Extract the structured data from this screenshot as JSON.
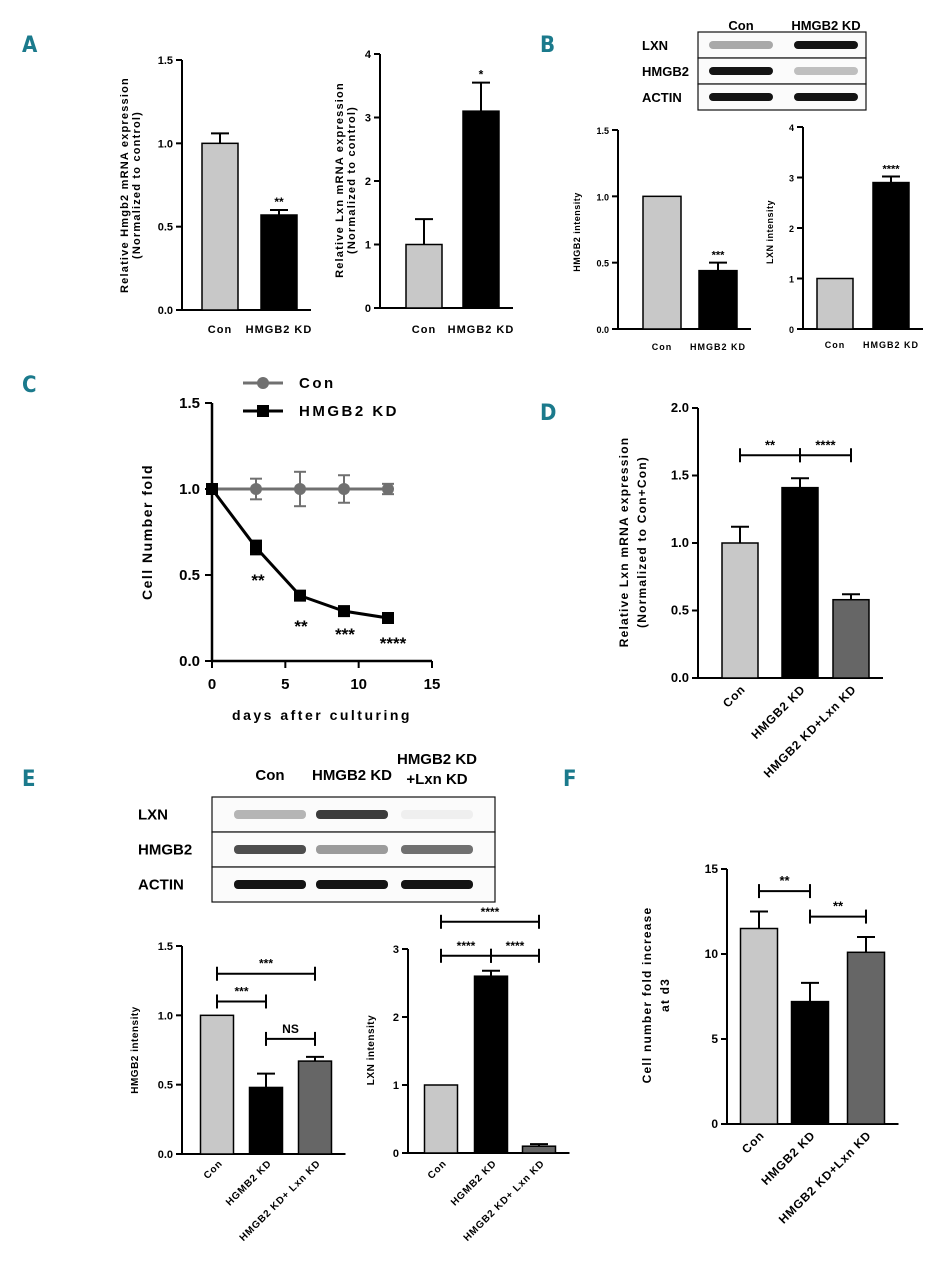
{
  "colors": {
    "panel_label": "#1b7a8c",
    "con_bar": "#c8c8c8",
    "kd_bar": "#000000",
    "kdlxn_bar": "#666666",
    "con_line": "#707070",
    "kd_line": "#000000"
  },
  "panel_labels": {
    "A": "A",
    "B": "B",
    "C": "C",
    "D": "D",
    "E": "E",
    "F": "F"
  },
  "chart_data": [
    {
      "id": "A1",
      "type": "bar",
      "categories": [
        "Con",
        "HMGB2 KD"
      ],
      "values": [
        1.0,
        0.57
      ],
      "errors": [
        0.06,
        0.03
      ],
      "sig": [
        "",
        "**"
      ],
      "ylabel": [
        "Relative Hmgb2 mRNA expression",
        "(Normalized to control)"
      ],
      "yticks": [
        "0.0",
        "0.5",
        "1.0",
        "1.5"
      ],
      "ylim": [
        0,
        1.5
      ]
    },
    {
      "id": "A2",
      "type": "bar",
      "categories": [
        "Con",
        "HMGB2 KD"
      ],
      "values": [
        1.0,
        3.1
      ],
      "errors": [
        0.4,
        0.45
      ],
      "sig": [
        "",
        "*"
      ],
      "ylabel": [
        "Relative Lxn mRNA expression",
        "(Normalized to control)"
      ],
      "yticks": [
        "0",
        "1",
        "2",
        "3",
        "4"
      ],
      "ylim": [
        0,
        4
      ]
    },
    {
      "id": "B1",
      "type": "bar",
      "categories": [
        "Con",
        "HMGB2 KD"
      ],
      "values": [
        1.0,
        0.44
      ],
      "errors": [
        0,
        0.06
      ],
      "sig": [
        "",
        "***"
      ],
      "ylabel": [
        "HMGB2 intensity"
      ],
      "yticks": [
        "0.0",
        "0.5",
        "1.0",
        "1.5"
      ],
      "ylim": [
        0,
        1.5
      ]
    },
    {
      "id": "B2",
      "type": "bar",
      "categories": [
        "Con",
        "HMGB2 KD"
      ],
      "values": [
        1.0,
        2.9
      ],
      "errors": [
        0,
        0.12
      ],
      "sig": [
        "",
        "****"
      ],
      "ylabel": [
        "LXN intensity"
      ],
      "yticks": [
        "0",
        "1",
        "2",
        "3",
        "4"
      ],
      "ylim": [
        0,
        4
      ]
    },
    {
      "id": "C",
      "type": "line",
      "xlabel": "days after culturing",
      "ylabel": "Cell Number fold",
      "xticks": [
        "0",
        "5",
        "10",
        "15"
      ],
      "xlim": [
        0,
        15
      ],
      "yticks": [
        "0.0",
        "0.5",
        "1.0",
        "1.5"
      ],
      "ylim": [
        0,
        1.5
      ],
      "series": [
        {
          "name": "Con",
          "x": [
            0,
            3,
            6,
            9,
            12
          ],
          "y": [
            1.0,
            1.0,
            1.0,
            1.0,
            1.0
          ],
          "err": [
            0,
            0.06,
            0.1,
            0.08,
            0.03
          ]
        },
        {
          "name": "HMGB2 KD",
          "x": [
            0,
            3,
            6,
            9,
            12
          ],
          "y": [
            1.0,
            0.66,
            0.38,
            0.29,
            0.25
          ],
          "err": [
            0,
            0.04,
            0.015,
            0.015,
            0.015
          ]
        }
      ],
      "sig": [
        "",
        "**",
        "**",
        "***",
        "****"
      ]
    },
    {
      "id": "D",
      "type": "bar",
      "categories": [
        "Con",
        "HMGB2 KD",
        "HMGB2 KD+Lxn KD"
      ],
      "values": [
        1.0,
        1.41,
        0.58
      ],
      "errors": [
        0.12,
        0.07,
        0.04
      ],
      "ylabel": [
        "Relative Lxn mRNA expression",
        "(Normalized to Con+Con)"
      ],
      "yticks": [
        "0.0",
        "0.5",
        "1.0",
        "1.5",
        "2.0"
      ],
      "ylim": [
        0,
        2.0
      ],
      "brackets": [
        {
          "from": 0,
          "to": 1,
          "y": 1.65,
          "label": "**"
        },
        {
          "from": 1,
          "to": 2,
          "y": 1.65,
          "label": "****"
        }
      ]
    },
    {
      "id": "E1",
      "type": "bar",
      "categories": [
        "Con",
        "HGMB2 KD",
        "HMGB2 KD+ Lxn KD"
      ],
      "values": [
        1.0,
        0.48,
        0.67
      ],
      "errors": [
        0,
        0.1,
        0.03
      ],
      "ylabel": [
        "HMGB2 intensity"
      ],
      "yticks": [
        "0.0",
        "0.5",
        "1.0",
        "1.5"
      ],
      "ylim": [
        0,
        1.5
      ],
      "brackets": [
        {
          "from": 0,
          "to": 2,
          "y": 1.3,
          "label": "***"
        },
        {
          "from": 0,
          "to": 1,
          "y": 1.1,
          "label": "***"
        },
        {
          "from": 1,
          "to": 2,
          "y": 0.83,
          "label": "NS"
        }
      ]
    },
    {
      "id": "E2",
      "type": "bar",
      "categories": [
        "Con",
        "HGMB2 KD",
        "HMGB2 KD+ Lxn KD"
      ],
      "values": [
        1.0,
        2.6,
        0.1
      ],
      "errors": [
        0,
        0.08,
        0.03
      ],
      "ylabel": [
        "LXN intensity"
      ],
      "yticks": [
        "0",
        "1",
        "2",
        "3"
      ],
      "ylim": [
        0,
        3
      ],
      "brackets": [
        {
          "from": 0,
          "to": 2,
          "y": 3.4,
          "label": "****"
        },
        {
          "from": 0,
          "to": 1,
          "y": 2.9,
          "label": "****"
        },
        {
          "from": 1,
          "to": 2,
          "y": 2.9,
          "label": "****"
        }
      ]
    },
    {
      "id": "F",
      "type": "bar",
      "categories": [
        "Con",
        "HMGB2 KD",
        "HMGB2 KD+Lxn KD"
      ],
      "values": [
        11.5,
        7.2,
        10.1
      ],
      "errors": [
        1.0,
        1.1,
        0.9
      ],
      "ylabel": [
        "Cell number fold increase",
        "at d3"
      ],
      "yticks": [
        "0",
        "5",
        "10",
        "15"
      ],
      "ylim": [
        0,
        15
      ],
      "brackets": [
        {
          "from": 0,
          "to": 1,
          "y": 13.7,
          "label": "**"
        },
        {
          "from": 1,
          "to": 2,
          "y": 12.2,
          "label": "**"
        }
      ]
    }
  ],
  "blots": [
    {
      "id": "B",
      "lanes": [
        "Con",
        "HMGB2 KD"
      ],
      "rows": [
        {
          "label": "LXN",
          "intensity": [
            0.55,
            1.0
          ]
        },
        {
          "label": "HMGB2",
          "intensity": [
            1.0,
            0.45
          ]
        },
        {
          "label": "ACTIN",
          "intensity": [
            1.0,
            1.0
          ]
        }
      ]
    },
    {
      "id": "E",
      "lanes": [
        "Con",
        "HMGB2 KD",
        "HMGB2 KD\n+Lxn KD"
      ],
      "rows": [
        {
          "label": "LXN",
          "intensity": [
            0.5,
            0.9,
            0.15
          ]
        },
        {
          "label": "HMGB2",
          "intensity": [
            0.85,
            0.6,
            0.75
          ]
        },
        {
          "label": "ACTIN",
          "intensity": [
            1.0,
            1.0,
            1.0
          ]
        }
      ]
    }
  ]
}
